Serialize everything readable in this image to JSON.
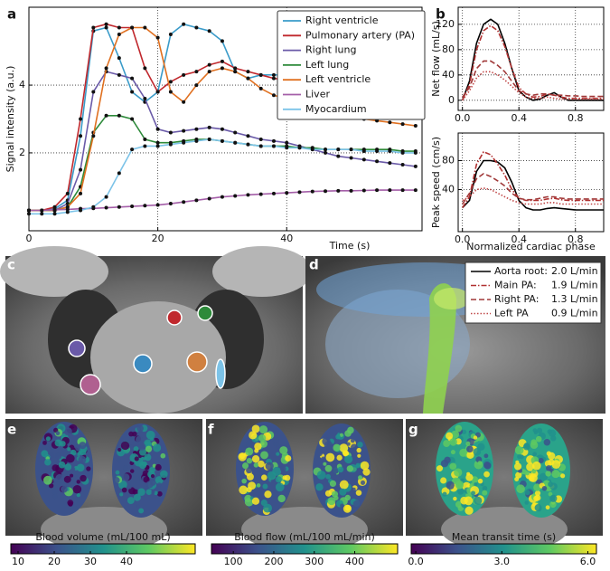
{
  "panel_labels": [
    "a",
    "b",
    "c",
    "d",
    "e",
    "f",
    "g"
  ],
  "flow_legend": [
    {
      "label": "Aorta root:",
      "value": "2.0 L/min"
    },
    {
      "label": "Main PA:",
      "value": "1.9 L/min"
    },
    {
      "label": "Right PA:",
      "value": "1.3 L/min"
    },
    {
      "label": "Left PA",
      "value": "0.9 L/min"
    }
  ],
  "chart_data": [
    {
      "type": "line",
      "xlabel": "Time (s)",
      "ylabel": "Signal intensity (a.u.)",
      "x": [
        0,
        2,
        4,
        6,
        8,
        10,
        12,
        14,
        16,
        18,
        20,
        22,
        24,
        26,
        28,
        30,
        32,
        34,
        36,
        38,
        40,
        42,
        44,
        46,
        48,
        50,
        52,
        54,
        56,
        58,
        60
      ],
      "xlim": [
        0,
        61
      ],
      "ylim": [
        -0.3,
        6.3
      ],
      "xticks": [
        0,
        20,
        40
      ],
      "yticks": [
        2,
        4
      ],
      "grid": true,
      "legend": "upper right",
      "series": [
        {
          "name": "Right ventricle",
          "color": "#3a9bc9",
          "values": [
            0.3,
            0.3,
            0.35,
            0.6,
            2.5,
            5.6,
            5.7,
            4.8,
            3.8,
            3.5,
            3.8,
            5.5,
            5.8,
            5.7,
            5.6,
            5.3,
            4.4,
            4.2,
            4.3,
            4.3,
            4.3,
            4.35,
            4.35,
            4.3,
            4.3,
            4.3,
            4.3,
            4.25,
            4.2,
            4.1,
            4.0
          ]
        },
        {
          "name": "Pulmonary artery (PA)",
          "color": "#c0282d",
          "values": [
            0.3,
            0.3,
            0.4,
            0.8,
            3.0,
            5.7,
            5.8,
            5.7,
            5.7,
            4.5,
            3.8,
            4.1,
            4.3,
            4.4,
            4.6,
            4.7,
            4.5,
            4.4,
            4.3,
            4.2,
            4.15,
            4.1,
            4.1,
            4.05,
            4.0,
            4.0,
            4.0,
            4.0,
            3.95,
            3.95,
            3.9
          ]
        },
        {
          "name": "Right lung",
          "color": "#6a5aa8",
          "values": [
            0.3,
            0.3,
            0.3,
            0.5,
            1.5,
            3.8,
            4.4,
            4.3,
            4.2,
            3.6,
            2.7,
            2.6,
            2.65,
            2.7,
            2.75,
            2.7,
            2.6,
            2.5,
            2.4,
            2.35,
            2.3,
            2.2,
            2.1,
            2.0,
            1.9,
            1.85,
            1.8,
            1.75,
            1.7,
            1.65,
            1.6
          ]
        },
        {
          "name": "Left lung",
          "color": "#2d8a3a",
          "values": [
            0.3,
            0.3,
            0.3,
            0.4,
            1.0,
            2.6,
            3.1,
            3.1,
            3.0,
            2.4,
            2.3,
            2.3,
            2.35,
            2.4,
            2.4,
            2.35,
            2.3,
            2.25,
            2.2,
            2.2,
            2.2,
            2.15,
            2.15,
            2.1,
            2.1,
            2.1,
            2.1,
            2.1,
            2.1,
            2.05,
            2.05
          ]
        },
        {
          "name": "Left ventricle",
          "color": "#e07020",
          "values": [
            0.3,
            0.3,
            0.3,
            0.4,
            0.8,
            2.5,
            4.5,
            5.5,
            5.7,
            5.7,
            5.4,
            3.8,
            3.5,
            4.0,
            4.4,
            4.5,
            4.4,
            4.2,
            3.9,
            3.7,
            3.6,
            3.4,
            3.3,
            3.2,
            3.1,
            3.05,
            3.0,
            2.95,
            2.9,
            2.85,
            2.8
          ]
        },
        {
          "name": "Liver",
          "color": "#a45fa8",
          "values": [
            0.3,
            0.3,
            0.32,
            0.33,
            0.35,
            0.36,
            0.38,
            0.4,
            0.42,
            0.44,
            0.46,
            0.5,
            0.55,
            0.6,
            0.65,
            0.7,
            0.73,
            0.76,
            0.78,
            0.8,
            0.82,
            0.84,
            0.86,
            0.87,
            0.88,
            0.88,
            0.89,
            0.9,
            0.9,
            0.9,
            0.9
          ]
        },
        {
          "name": "Myocardium",
          "color": "#7cc3e8",
          "values": [
            0.2,
            0.2,
            0.2,
            0.25,
            0.3,
            0.4,
            0.7,
            1.4,
            2.1,
            2.2,
            2.2,
            2.25,
            2.3,
            2.35,
            2.4,
            2.35,
            2.3,
            2.25,
            2.2,
            2.2,
            2.15,
            2.15,
            2.1,
            2.1,
            2.1,
            2.1,
            2.05,
            2.05,
            2.05,
            2.0,
            2.0
          ]
        }
      ]
    },
    {
      "type": "line",
      "ylabel": "Net flow (mL/s)",
      "x": [
        0,
        0.05,
        0.1,
        0.15,
        0.2,
        0.25,
        0.3,
        0.35,
        0.4,
        0.45,
        0.5,
        0.55,
        0.6,
        0.65,
        0.7,
        0.75,
        0.8,
        0.85,
        0.9,
        0.95,
        1.0
      ],
      "xlim": [
        -0.03,
        1.0
      ],
      "ylim": [
        -16,
        147
      ],
      "xticks": [
        {
          "value": 0,
          "label": "0.0"
        },
        0.4,
        0.8
      ],
      "yticks": [
        0,
        40,
        80,
        120
      ],
      "grid": true,
      "series": [
        {
          "color": "#000000",
          "dash": "solid",
          "values": [
            0,
            30,
            90,
            120,
            128,
            120,
            90,
            50,
            15,
            5,
            0,
            2,
            8,
            12,
            5,
            0,
            0,
            0,
            0,
            0,
            0
          ]
        },
        {
          "color": "#b03030",
          "dash": "dashdot",
          "values": [
            0,
            25,
            80,
            110,
            118,
            110,
            85,
            50,
            20,
            10,
            5,
            6,
            10,
            8,
            5,
            3,
            3,
            3,
            3,
            3,
            3
          ]
        },
        {
          "color": "#a03838",
          "dash": "dashed",
          "values": [
            5,
            20,
            50,
            62,
            62,
            55,
            45,
            30,
            15,
            10,
            8,
            10,
            10,
            8,
            8,
            7,
            7,
            6,
            6,
            6,
            6
          ]
        },
        {
          "color": "#c04848",
          "dash": "dotted",
          "values": [
            0,
            15,
            35,
            45,
            45,
            40,
            32,
            22,
            12,
            5,
            3,
            3,
            5,
            3,
            2,
            2,
            2,
            2,
            2,
            2,
            2
          ]
        }
      ]
    },
    {
      "type": "line",
      "ylabel": "Peak speed (cm/s)",
      "xlabel": "Normalized cardiac phase",
      "x": [
        0,
        0.05,
        0.1,
        0.15,
        0.2,
        0.25,
        0.3,
        0.35,
        0.4,
        0.45,
        0.5,
        0.55,
        0.6,
        0.65,
        0.7,
        0.75,
        0.8,
        0.85,
        0.9,
        0.95,
        1.0
      ],
      "xlim": [
        -0.03,
        1.0
      ],
      "ylim": [
        -18,
        118
      ],
      "xticks": [
        {
          "value": 0,
          "label": "0.0"
        },
        0.4,
        0.8
      ],
      "yticks": [
        40,
        80
      ],
      "grid": true,
      "series": [
        {
          "color": "#000000",
          "dash": "solid",
          "values": [
            15,
            25,
            65,
            80,
            80,
            78,
            70,
            50,
            25,
            15,
            12,
            12,
            14,
            15,
            14,
            13,
            12,
            12,
            12,
            12,
            12
          ]
        },
        {
          "color": "#b03030",
          "dash": "dashdot",
          "values": [
            15,
            30,
            75,
            92,
            88,
            75,
            60,
            40,
            28,
            25,
            25,
            25,
            27,
            28,
            26,
            25,
            25,
            25,
            25,
            25,
            25
          ]
        },
        {
          "color": "#a03838",
          "dash": "dashed",
          "values": [
            20,
            35,
            55,
            62,
            58,
            52,
            45,
            35,
            28,
            26,
            26,
            28,
            30,
            30,
            28,
            27,
            27,
            27,
            27,
            27,
            27
          ]
        },
        {
          "color": "#c04848",
          "dash": "dotted",
          "values": [
            25,
            30,
            40,
            42,
            40,
            35,
            30,
            25,
            22,
            20,
            20,
            20,
            22,
            22,
            20,
            20,
            20,
            20,
            20,
            20,
            20
          ]
        }
      ]
    },
    {
      "type": "colorbar",
      "label": "Blood volume (mL/100 mL)",
      "colormap": "viridis",
      "xlim": [
        8,
        59
      ],
      "xticks": [
        10,
        20,
        30,
        40
      ]
    },
    {
      "type": "colorbar",
      "label": "Blood flow (mL/100 mL/min)",
      "colormap": "viridis",
      "xlim": [
        46,
        506
      ],
      "xticks": [
        100,
        200,
        300,
        400
      ]
    },
    {
      "type": "colorbar",
      "label": "Mean transit time (s)",
      "colormap": "viridis",
      "xlim": [
        -0.16,
        6.3
      ],
      "xticks": [
        {
          "value": 0,
          "label": "0.0"
        },
        {
          "value": 3,
          "label": "3.0"
        },
        {
          "value": 6,
          "label": "6.0"
        }
      ]
    }
  ]
}
